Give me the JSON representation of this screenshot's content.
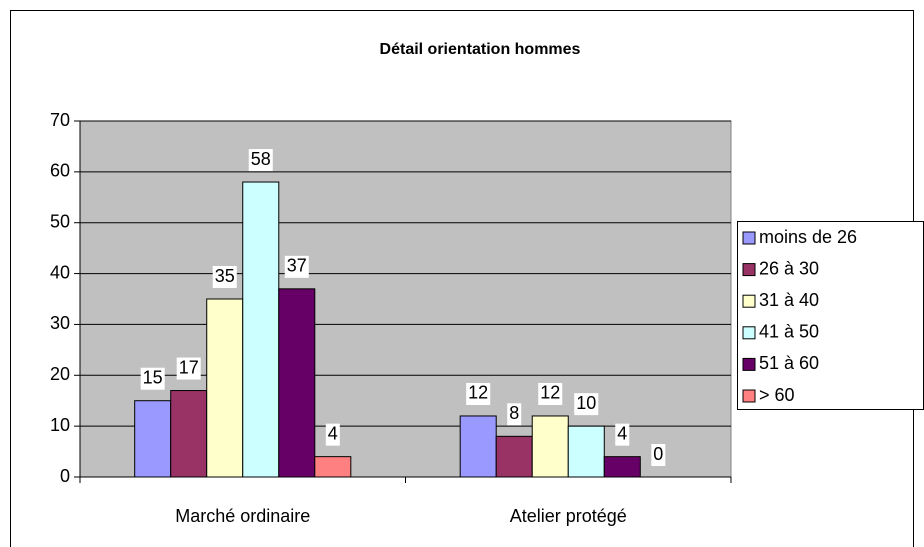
{
  "chart_data": {
    "type": "bar",
    "title": "Détail orientation hommes",
    "categories": [
      "Marché ordinaire",
      "Atelier protégé"
    ],
    "series": [
      {
        "name": "moins de 26",
        "color": "#9999ff",
        "values": [
          15,
          12
        ]
      },
      {
        "name": "26 à 30",
        "color": "#993366",
        "values": [
          17,
          8
        ]
      },
      {
        "name": "31 à 40",
        "color": "#ffffcc",
        "values": [
          35,
          12
        ]
      },
      {
        "name": "41 à 50",
        "color": "#ccffff",
        "values": [
          58,
          10
        ]
      },
      {
        "name": "51 à 60",
        "color": "#660066",
        "values": [
          37,
          4
        ]
      },
      {
        "name": "> 60",
        "color": "#ff8080",
        "values": [
          4,
          0
        ]
      }
    ],
    "ylim": [
      0,
      70
    ],
    "yticks": [
      0,
      10,
      20,
      30,
      40,
      50,
      60,
      70
    ],
    "grid": true,
    "plot_background": "#c0c0c0",
    "legend": "right"
  }
}
